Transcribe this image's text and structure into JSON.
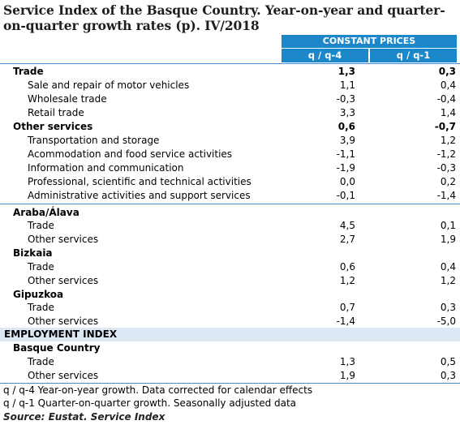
{
  "title": "Service Index of the Basque Country. Year-on-year and quarter-on-quarter growth rates (p). IV/2018",
  "header": {
    "group": "CONSTANT PRICES",
    "col1": "q / q-4",
    "col2": "q / q-1"
  },
  "rows": [
    {
      "label": "Trade",
      "v1": "1,3",
      "v2": "0,3"
    },
    {
      "label": "Sale and repair of motor vehicles",
      "v1": "1,1",
      "v2": "0,4"
    },
    {
      "label": "Wholesale trade",
      "v1": "-0,3",
      "v2": "-0,4"
    },
    {
      "label": "Retail trade",
      "v1": "3,3",
      "v2": "1,4"
    },
    {
      "label": "Other services",
      "v1": "0,6",
      "v2": "-0,7"
    },
    {
      "label": "Transportation and storage",
      "v1": "3,9",
      "v2": "1,2"
    },
    {
      "label": "Acommodation and food service activities",
      "v1": "-1,1",
      "v2": "-1,2"
    },
    {
      "label": "Information and communication",
      "v1": "-1,9",
      "v2": "-0,3"
    },
    {
      "label": "Professional, scientific and technical activities",
      "v1": "0,0",
      "v2": "0,2"
    },
    {
      "label": "Administrative activities and support services",
      "v1": "-0,1",
      "v2": "-1,4"
    },
    {
      "label": "Araba/Álava"
    },
    {
      "label": "Trade",
      "v1": "4,5",
      "v2": "0,1"
    },
    {
      "label": "Other services",
      "v1": "2,7",
      "v2": "1,9"
    },
    {
      "label": "Bizkaia"
    },
    {
      "label": "Trade",
      "v1": "0,6",
      "v2": "0,4"
    },
    {
      "label": "Other services",
      "v1": "1,2",
      "v2": "1,2"
    },
    {
      "label": "Gipuzkoa"
    },
    {
      "label": "Trade",
      "v1": "0,7",
      "v2": "0,3"
    },
    {
      "label": "Other services",
      "v1": "-1,4",
      "v2": "-5,0"
    }
  ],
  "employment": {
    "section": "EMPLOYMENT INDEX",
    "rows": [
      {
        "label": "Basque Country"
      },
      {
        "label": "Trade",
        "v1": "1,3",
        "v2": "0,5"
      },
      {
        "label": "Other services",
        "v1": "1,9",
        "v2": "0,3"
      }
    ]
  },
  "notes": {
    "n1": "q / q-4 Year-on-year growth. Data corrected for calendar effects",
    "n2": "q / q-1 Quarter-on-quarter growth. Seasonally adjusted data",
    "source": "Source: Eustat. Service Index"
  },
  "colors": {
    "header_bg": "#1c87c9",
    "band_bg": "#dce8f4",
    "rule": "#4a8cc9"
  }
}
